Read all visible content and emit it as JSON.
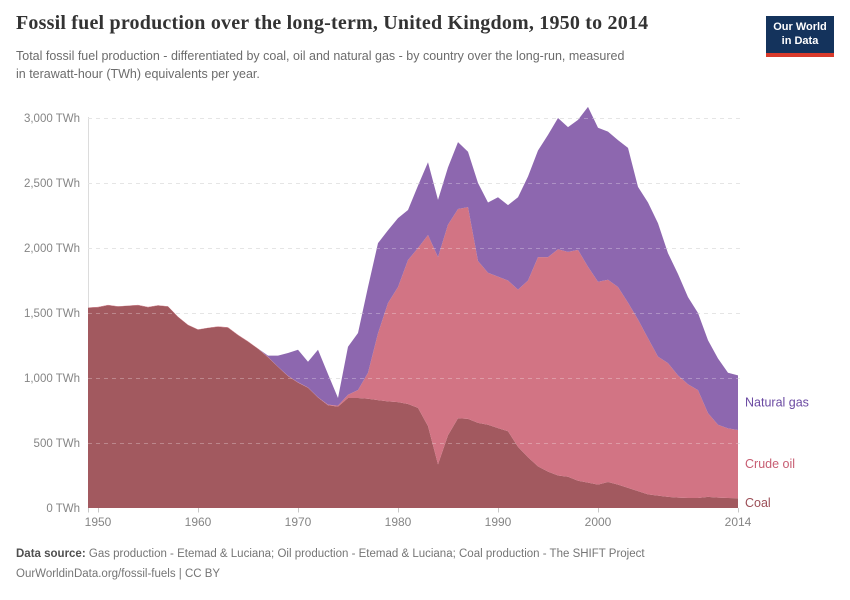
{
  "header": {
    "title": "Fossil fuel production over the long-term, United Kingdom, 1950 to 2014",
    "subtitle_line1": "Total fossil fuel production - differentiated by coal, oil and natural gas - by country over the long-run, measured",
    "subtitle_line2": "in terawatt-hour (TWh) equivalents per year.",
    "logo": {
      "line1": "Our World",
      "line2": "in Data",
      "bg_color": "#14335c",
      "stripe_color": "#d93a2b"
    }
  },
  "chart_data": {
    "type": "area",
    "stacked": true,
    "title": "Fossil fuel production over the long-term, United Kingdom, 1950 to 2014",
    "unit": "TWh",
    "xlabel": "",
    "ylabel": "TWh",
    "x_range": [
      1949,
      2014
    ],
    "x_step": 1,
    "ylim": [
      0,
      3200
    ],
    "grid": "dashed",
    "grid_color": "#dcdcdc",
    "axis_color": "#dcdcdc",
    "tick_mark_color": "#c8c8c8",
    "tick_label_color": "#858585",
    "legend_position": "right",
    "y_ticks": [
      {
        "value": 0,
        "label": "0 TWh"
      },
      {
        "value": 500,
        "label": "500 TWh"
      },
      {
        "value": 1000,
        "label": "1,000 TWh"
      },
      {
        "value": 1500,
        "label": "1,500 TWh"
      },
      {
        "value": 2000,
        "label": "2,000 TWh"
      },
      {
        "value": 2500,
        "label": "2,500 TWh"
      },
      {
        "value": 3000,
        "label": "3,000 TWh"
      }
    ],
    "x_ticks": [
      {
        "value": 1950,
        "label": "1950"
      },
      {
        "value": 1960,
        "label": "1960"
      },
      {
        "value": 1970,
        "label": "1970"
      },
      {
        "value": 1980,
        "label": "1980"
      },
      {
        "value": 1990,
        "label": "1990"
      },
      {
        "value": 2000,
        "label": "2000"
      },
      {
        "value": 2014,
        "label": "2014"
      }
    ],
    "series": [
      {
        "name": "Coal",
        "color": "#a2595f",
        "label_color": "#9c4f58",
        "values": [
          1540,
          1545,
          1560,
          1550,
          1555,
          1560,
          1545,
          1558,
          1550,
          1470,
          1408,
          1372,
          1385,
          1395,
          1388,
          1330,
          1280,
          1225,
          1160,
          1085,
          1015,
          965,
          925,
          850,
          790,
          780,
          846,
          846,
          840,
          830,
          820,
          815,
          800,
          770,
          630,
          335,
          560,
          690,
          685,
          655,
          640,
          615,
          590,
          470,
          390,
          320,
          280,
          250,
          240,
          210,
          195,
          180,
          200,
          180,
          155,
          130,
          105,
          95,
          85,
          80,
          77,
          77,
          85,
          80,
          77,
          75
        ]
      },
      {
        "name": "Crude oil",
        "color": "#d27484",
        "label_color": "#c75d72",
        "values": [
          2,
          2,
          2,
          2,
          2,
          2,
          2,
          2,
          2,
          2,
          2,
          2,
          2,
          2,
          2,
          2,
          2,
          2,
          2,
          2,
          2,
          2,
          2,
          2,
          5,
          8,
          25,
          62,
          200,
          515,
          757,
          885,
          1108,
          1230,
          1470,
          1595,
          1620,
          1610,
          1630,
          1245,
          1170,
          1165,
          1160,
          1210,
          1360,
          1610,
          1650,
          1740,
          1730,
          1775,
          1660,
          1560,
          1555,
          1520,
          1425,
          1320,
          1200,
          1070,
          1030,
          940,
          875,
          830,
          645,
          560,
          535,
          525
        ]
      },
      {
        "name": "Natural gas",
        "color": "#8d67af",
        "label_color": "#6b4aa2",
        "values": [
          0,
          0,
          0,
          0,
          0,
          0,
          0,
          0,
          0,
          0,
          0,
          0,
          0,
          0,
          0,
          0,
          0,
          0,
          10,
          85,
          175,
          250,
          198,
          365,
          235,
          58,
          370,
          438,
          660,
          693,
          560,
          530,
          384,
          480,
          560,
          440,
          440,
          515,
          425,
          600,
          540,
          610,
          580,
          710,
          800,
          820,
          940,
          1010,
          960,
          1000,
          1230,
          1185,
          1140,
          1130,
          1190,
          1020,
          1045,
          1025,
          845,
          780,
          670,
          593,
          560,
          510,
          428,
          420
        ]
      }
    ]
  },
  "footer": {
    "source_label": "Data source:",
    "source_text": "Gas production - Etemad & Luciana; Oil production - Etemad & Luciana; Coal production - The SHIFT Project",
    "link_text": "OurWorldinData.org/fossil-fuels | CC BY"
  }
}
